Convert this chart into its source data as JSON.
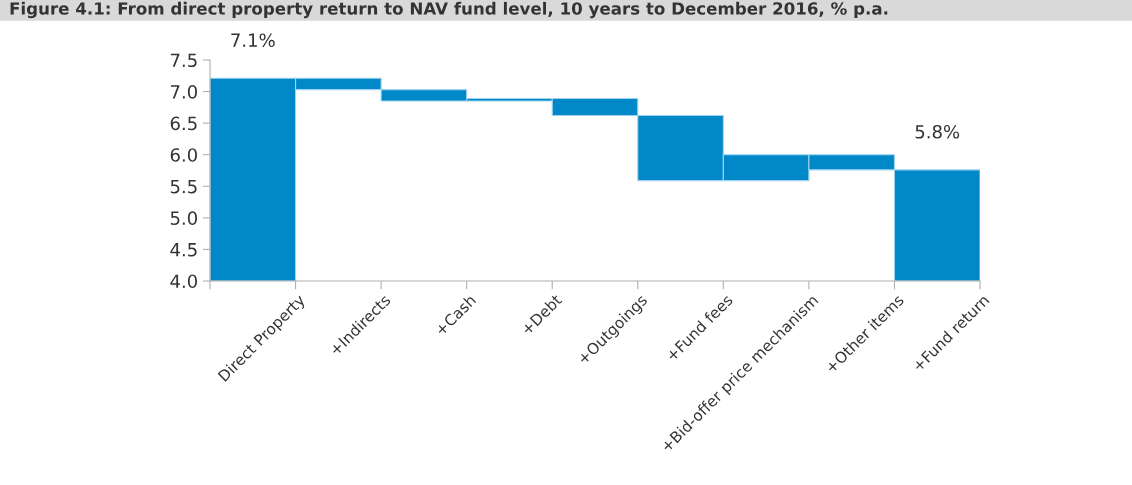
{
  "chart_data": {
    "type": "bar",
    "title": "Figure 4.1: From direct property return to NAV fund level, 10 years to December 2016, % p.a.",
    "categories": [
      "Direct Property",
      "+Indirects",
      "+Cash",
      "+Debt",
      "+Outgoings",
      "+Fund fees",
      "+Bid-offer price mechanism",
      "+Other items",
      "+Fund return"
    ],
    "values": [
      3.21,
      0.18,
      0.18,
      0.04,
      0.27,
      1.03,
      0.41,
      0.24,
      1.76
    ],
    "base": [
      4.0,
      7.03,
      6.85,
      6.85,
      6.62,
      5.59,
      5.59,
      5.76,
      4.0
    ],
    "color": "#0088c8",
    "ylim": [
      4.0,
      7.5
    ],
    "yticks": [
      {
        "value": 4.0,
        "label": "4.0"
      },
      {
        "value": 4.5,
        "label": "4.5"
      },
      {
        "value": 5.0,
        "label": "5.0"
      },
      {
        "value": 5.5,
        "label": "5.5"
      },
      {
        "value": 6.0,
        "label": "6.0"
      },
      {
        "value": 6.5,
        "label": "6.5"
      },
      {
        "value": 7.0,
        "label": "7.0"
      },
      {
        "value": 7.5,
        "label": "7.5"
      }
    ],
    "annotations": [
      {
        "text": "7.1%",
        "x": "Direct Property",
        "y": 7.21
      },
      {
        "text": "5.8%",
        "x": "+Fund return",
        "y": 5.76
      }
    ],
    "grid": false,
    "legend": false
  }
}
